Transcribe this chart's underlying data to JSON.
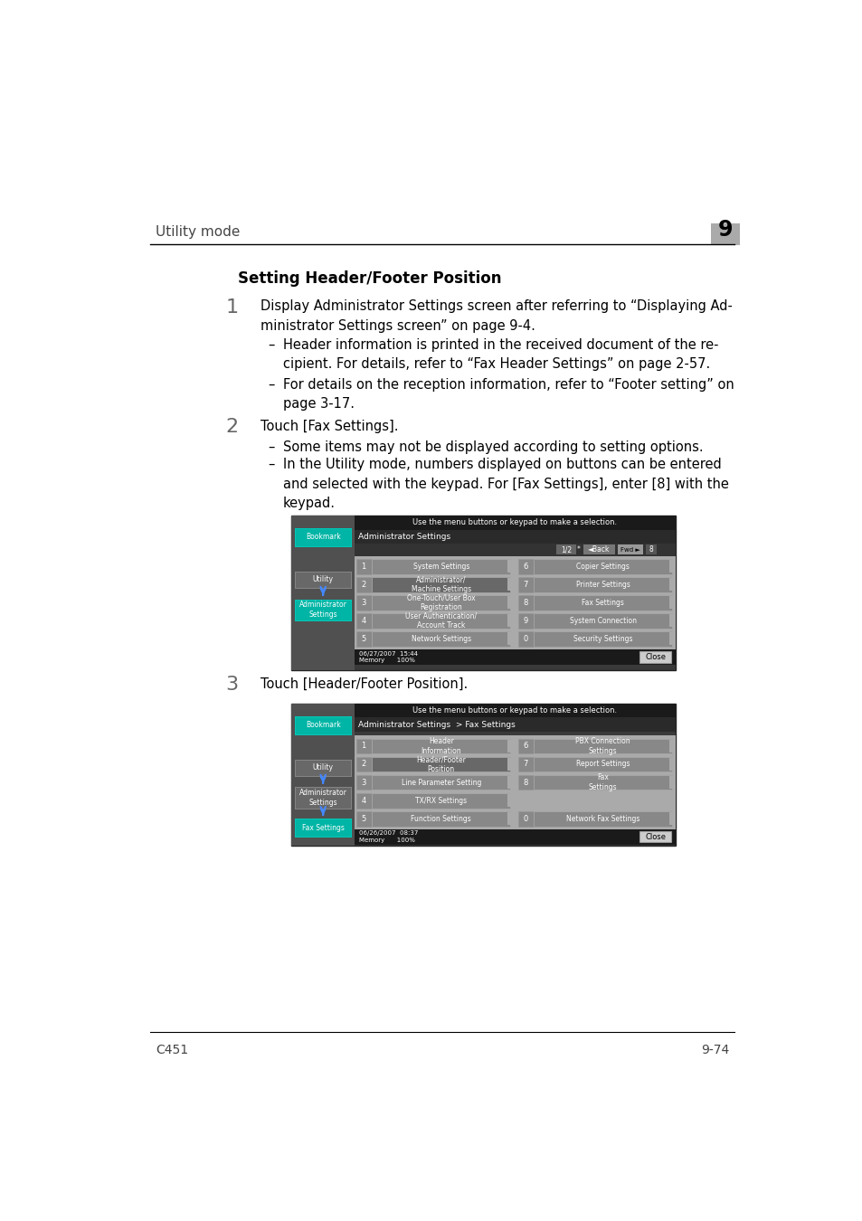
{
  "page_bg": "#ffffff",
  "header_text": "Utility mode",
  "header_number": "9",
  "header_number_bg": "#b0b0b0",
  "footer_left": "C451",
  "footer_right": "9-74",
  "section_title": "Setting Header/Footer Position",
  "step1_number": "1",
  "step2_number": "2",
  "step3_number": "3",
  "step3_text": "Touch [Header/Footer Position].",
  "teal_color": "#00b5a5",
  "screen1_rows": [
    [
      "1",
      "System Settings",
      "6",
      "Copier Settings"
    ],
    [
      "2",
      "Administrator/\nMachine Settings",
      "7",
      "Printer Settings"
    ],
    [
      "3",
      "One-Touch/User Box\nRegistration",
      "8",
      "Fax Settings"
    ],
    [
      "4",
      "User Authentication/\nAccount Track",
      "9",
      "System Connection"
    ],
    [
      "5",
      "Network Settings",
      "0",
      "Security Settings"
    ]
  ],
  "screen2_rows": [
    [
      "1",
      "Header\nInformation",
      "6",
      "PBX Connection\nSettings"
    ],
    [
      "2",
      "Header/Footer\nPosition",
      "7",
      "Report Settings"
    ],
    [
      "3",
      "Line Parameter Setting",
      "8",
      "Fax\nSettings"
    ],
    [
      "4",
      "TX/RX Settings",
      "",
      ""
    ],
    [
      "5",
      "Function Settings",
      "0",
      "Network Fax Settings"
    ]
  ]
}
